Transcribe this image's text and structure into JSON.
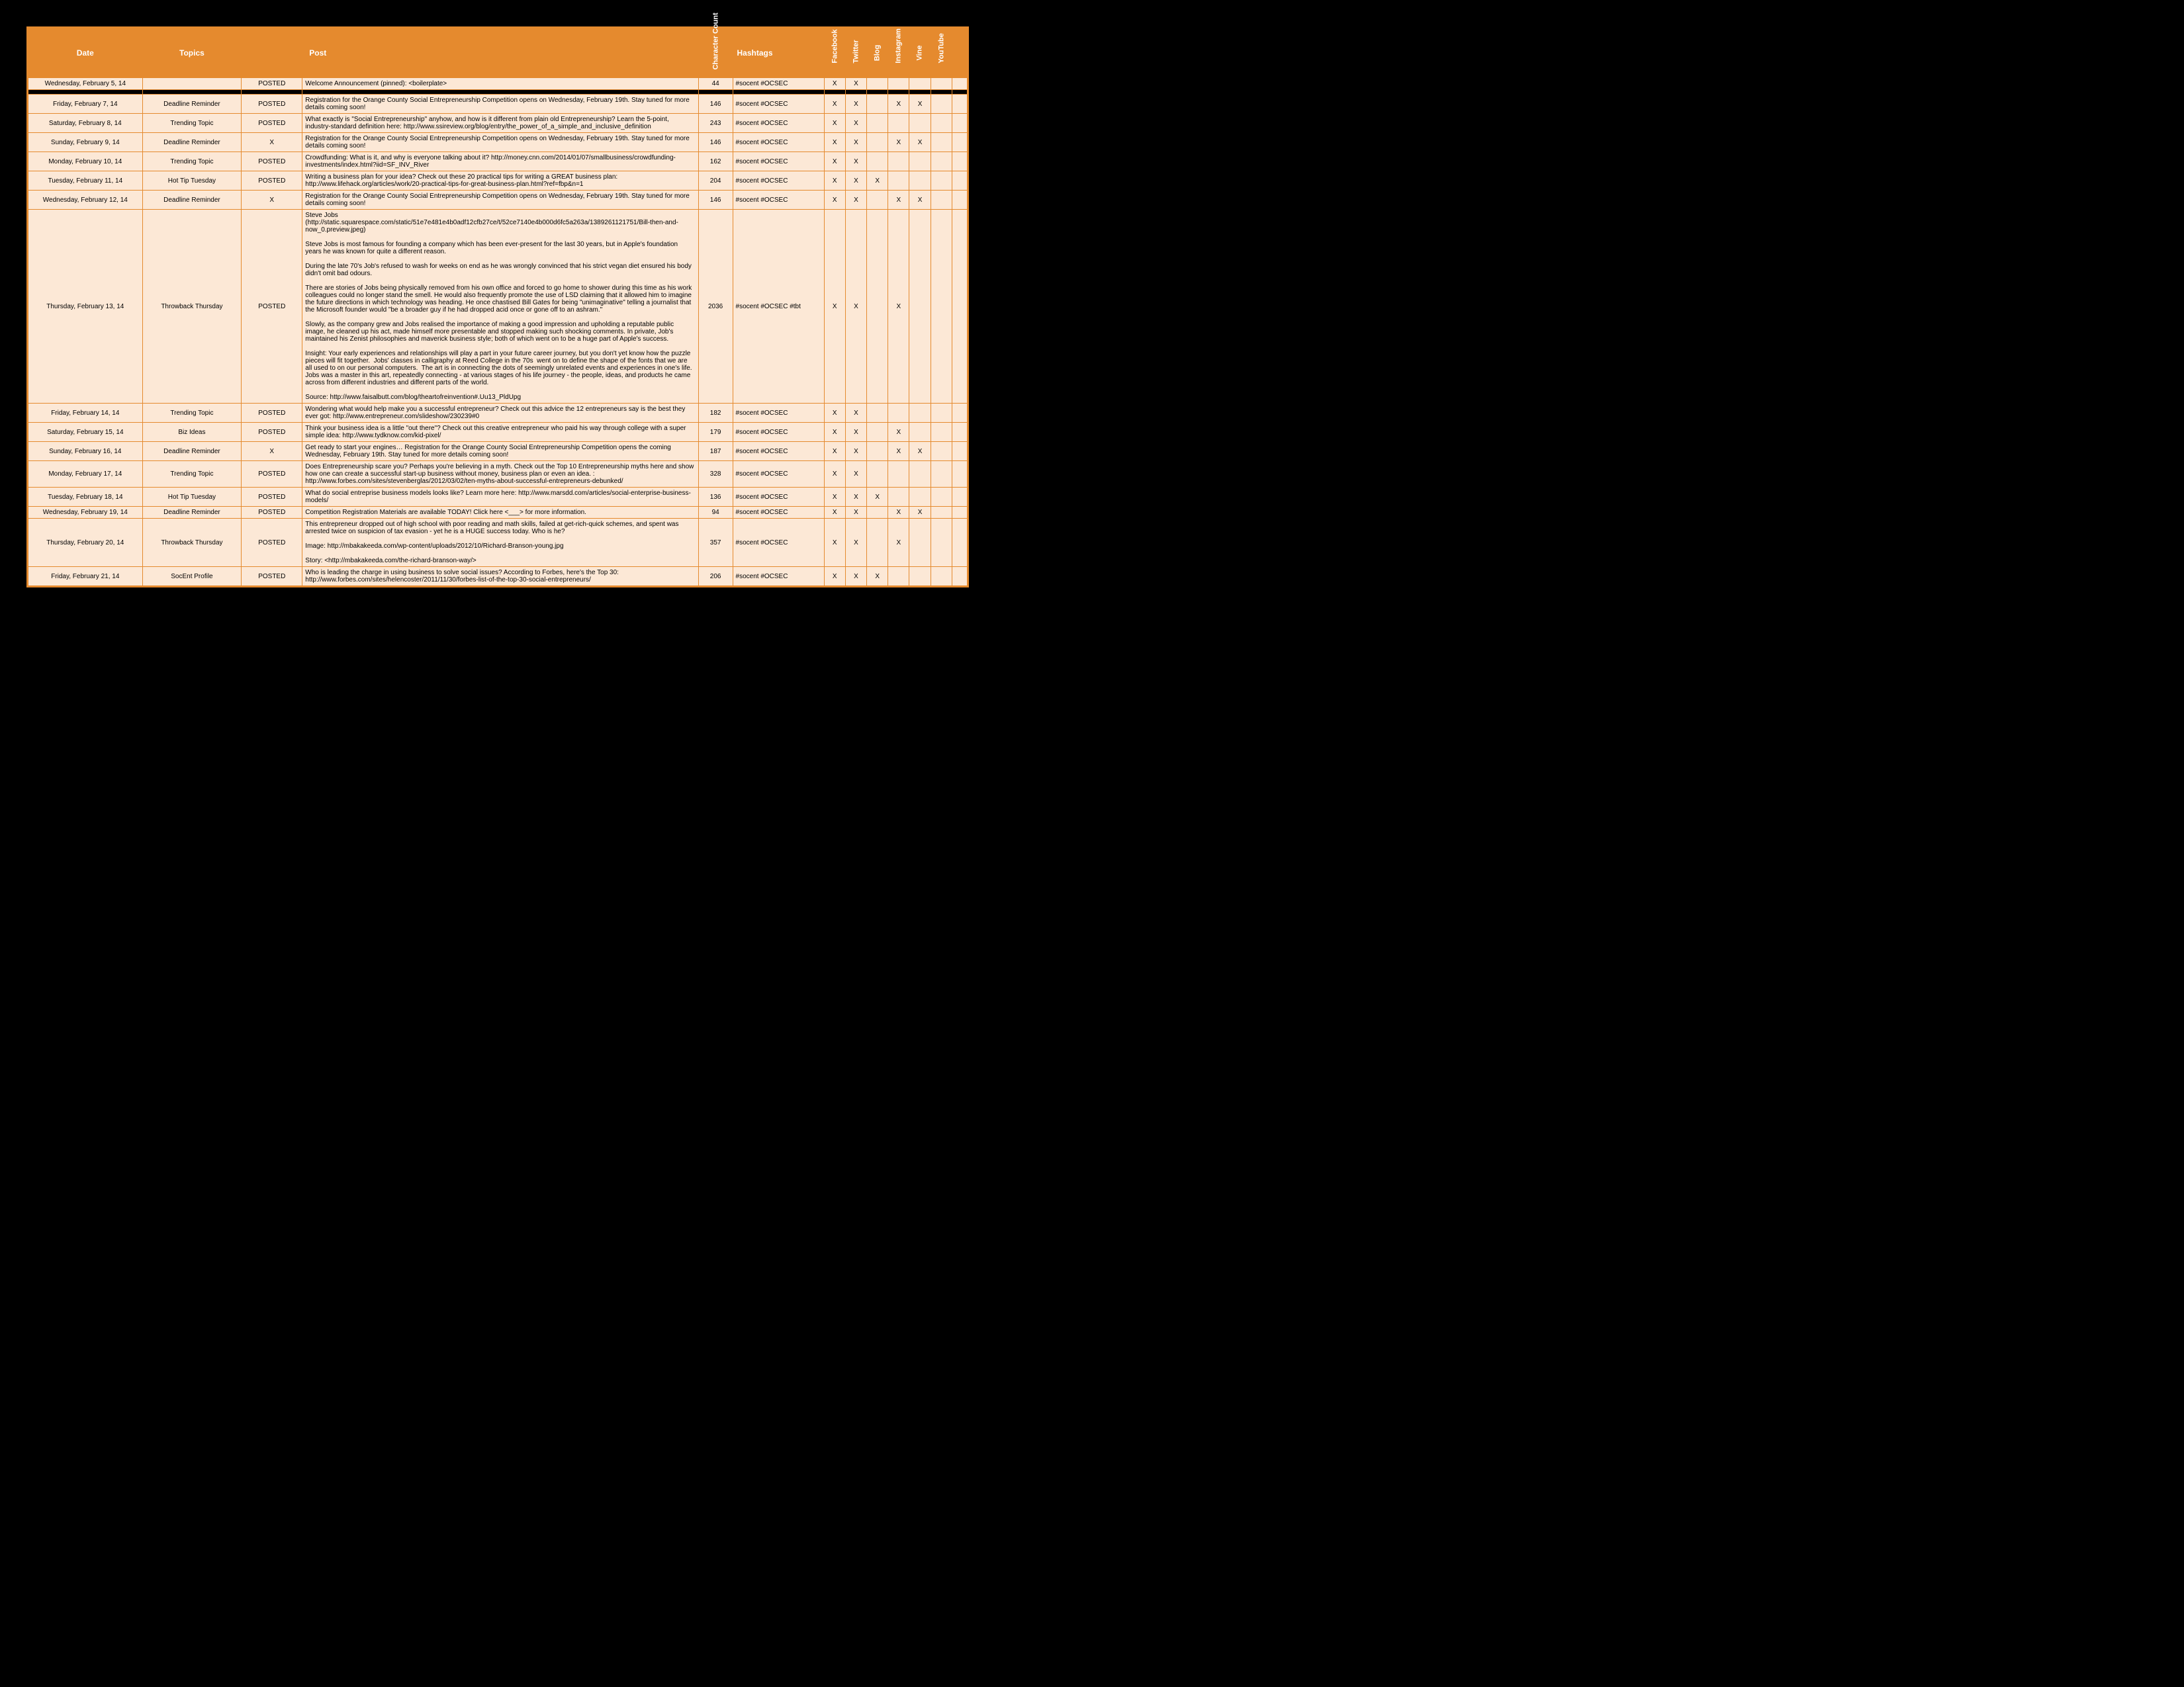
{
  "colors": {
    "header_bg": "#e58a2e",
    "header_text": "#ffffff",
    "row_bg": "#fce8d6",
    "border": "#e58a2e",
    "page_bg": "#000000"
  },
  "columns": {
    "date": "Date",
    "topics": "Topics",
    "status": "",
    "post": "Post",
    "char_count": "Character Count",
    "hashtags": "Hashtags",
    "channels": [
      "Facebook",
      "Twitter",
      "Blog",
      "Instagram",
      "Vine",
      "YouTube"
    ]
  },
  "rows": [
    {
      "date": "Wednesday, February 5, 14",
      "topic": "",
      "status": "POSTED",
      "post": "Welcome Announcement (pinned): <boilerplate>",
      "cc": "44",
      "hash": "#socent #OCSEC",
      "ch": [
        "X",
        "X",
        "",
        "",
        "",
        ""
      ]
    },
    {
      "divider": true
    },
    {
      "date": "Friday, February 7, 14",
      "topic": "Deadline Reminder",
      "status": "POSTED",
      "post": "Registration for the Orange County Social Entrepreneurship Competition opens on Wednesday, February 19th. Stay tuned for more details coming soon!",
      "cc": "146",
      "hash": "#socent #OCSEC",
      "ch": [
        "X",
        "X",
        "",
        "X",
        "X",
        ""
      ]
    },
    {
      "date": "Saturday, February 8, 14",
      "topic": "Trending Topic",
      "status": "POSTED",
      "post": "What exactly is \"Social Entrepreneurship\" anyhow, and how is it different from plain old Entrepreneurship? Learn the 5-point, industry-standard definition here: http://www.ssireview.org/blog/entry/the_power_of_a_simple_and_inclusive_definition",
      "cc": "243",
      "hash": "#socent #OCSEC",
      "ch": [
        "X",
        "X",
        "",
        "",
        "",
        ""
      ]
    },
    {
      "date": "Sunday, February 9, 14",
      "topic": "Deadline Reminder",
      "status": "X",
      "post": "Registration for the Orange County Social Entrepreneurship Competition opens on Wednesday, February 19th. Stay tuned for more details coming soon!",
      "cc": "146",
      "hash": "#socent #OCSEC",
      "ch": [
        "X",
        "X",
        "",
        "X",
        "X",
        ""
      ]
    },
    {
      "date": "Monday, February 10, 14",
      "topic": "Trending Topic",
      "status": "POSTED",
      "post": "Crowdfunding: What is it, and why is everyone talking about it? http://money.cnn.com/2014/01/07/smallbusiness/crowdfunding-investments/index.html?iid=SF_INV_River",
      "cc": "162",
      "hash": "#socent #OCSEC",
      "ch": [
        "X",
        "X",
        "",
        "",
        "",
        ""
      ]
    },
    {
      "date": "Tuesday, February 11, 14",
      "topic": "Hot Tip Tuesday",
      "status": "POSTED",
      "post": "Writing a business plan for your idea? Check out these 20 practical tips for writing a GREAT business plan: http://www.lifehack.org/articles/work/20-practical-tips-for-great-business-plan.html?ref=fbp&n=1",
      "cc": "204",
      "hash": "#socent #OCSEC",
      "ch": [
        "X",
        "X",
        "X",
        "",
        "",
        ""
      ]
    },
    {
      "date": "Wednesday, February 12, 14",
      "topic": "Deadline Reminder",
      "status": "X",
      "post": "Registration for the Orange County Social Entrepreneurship Competition opens on Wednesday, February 19th. Stay tuned for more details coming soon!",
      "cc": "146",
      "hash": "#socent #OCSEC",
      "ch": [
        "X",
        "X",
        "",
        "X",
        "X",
        ""
      ]
    },
    {
      "date": "Thursday, February 13, 14",
      "topic": "Throwback Thursday",
      "status": "POSTED",
      "post": "Steve Jobs\n(http://static.squarespace.com/static/51e7e481e4b0adf12cfb27ce/t/52ce7140e4b000d6fc5a263a/1389261121751/Bill-then-and-now_0.preview.jpeg)\n\nSteve Jobs is most famous for founding a company which has been ever-present for the last 30 years, but in Apple's foundation years he was known for quite a different reason.\n\nDuring the late 70's Job's refused to wash for weeks on end as he was wrongly convinced that his strict vegan diet ensured his body didn't omit bad odours.\n\nThere are stories of Jobs being physically removed from his own office and forced to go home to shower during this time as his work colleagues could no longer stand the smell. He would also frequently promote the use of LSD claiming that it allowed him to imagine the future directions in which technology was heading. He once chastised Bill Gates for being \"unimaginative\" telling a journalist that the Microsoft founder would \"be a broader guy if he had dropped acid once or gone off to an ashram.\"\n\nSlowly, as the company grew and Jobs realised the importance of making a good impression and upholding a reputable public image, he cleaned up his act, made himself more presentable and stopped making such shocking comments. In private, Job's maintained his Zenist philosophies and maverick business style; both of which went on to be a huge part of Apple's success.\n\nInsight: Your early experiences and relationships will play a part in your future career journey, but you don't yet know how the puzzle pieces will fit together.  Jobs' classes in calligraphy at Reed College in the 70s  went on to define the shape of the fonts that we are all used to on our personal computers.  The art is in connecting the dots of seemingly unrelated events and experiences in one's life.  Jobs was a master in this art, repeatedly connecting - at various stages of his life journey - the people, ideas, and products he came across from different industries and different parts of the world.\n\nSource: http://www.faisalbutt.com/blog/theartofreinvention#.Uu13_PldUpg",
      "cc": "2036",
      "hash": "#socent #OCSEC #tbt",
      "ch": [
        "X",
        "X",
        "",
        "X",
        "",
        ""
      ]
    },
    {
      "date": "Friday, February 14, 14",
      "topic": "Trending Topic",
      "status": "POSTED",
      "post": "Wondering what would help make you a successful entrepreneur? Check out this advice the 12 entrepreneurs say is the best they ever got: http://www.entrepreneur.com/slideshow/230239#0",
      "cc": "182",
      "hash": "#socent #OCSEC",
      "ch": [
        "X",
        "X",
        "",
        "",
        "",
        ""
      ]
    },
    {
      "date": "Saturday, February 15, 14",
      "topic": "Biz Ideas",
      "status": "POSTED",
      "post": "Think your business idea is a little \"out there\"? Check out this creative entrepreneur who paid his way through college with a super simple idea: http://www.tydknow.com/kid-pixel/",
      "cc": "179",
      "hash": "#socent #OCSEC",
      "ch": [
        "X",
        "X",
        "",
        "X",
        "",
        ""
      ]
    },
    {
      "date": "Sunday, February 16, 14",
      "topic": "Deadline Reminder",
      "status": "X",
      "post": "Get ready to start your engines… Registration for the Orange County Social Entrepreneurship Competition opens the coming Wednesday, February 19th. Stay tuned for more details coming soon!",
      "cc": "187",
      "hash": "#socent #OCSEC",
      "ch": [
        "X",
        "X",
        "",
        "X",
        "X",
        ""
      ]
    },
    {
      "date": "Monday, February 17, 14",
      "topic": "Trending Topic",
      "status": "POSTED",
      "post": "Does Entrepreneurship scare you? Perhaps you're believing in a myth. Check out the Top 10 Entrepreneurship myths here and show how one can create a successful start-up business without money, business plan or even an idea. : http://www.forbes.com/sites/stevenberglas/2012/03/02/ten-myths-about-successful-entrepreneurs-debunked/",
      "cc": "328",
      "hash": "#socent #OCSEC",
      "ch": [
        "X",
        "X",
        "",
        "",
        "",
        ""
      ]
    },
    {
      "date": "Tuesday, February 18, 14",
      "topic": "Hot Tip Tuesday",
      "status": "POSTED",
      "post": "What do social entreprise business models looks like? Learn more here: http://www.marsdd.com/articles/social-enterprise-business-models/",
      "cc": "136",
      "hash": "#socent #OCSEC",
      "ch": [
        "X",
        "X",
        "X",
        "",
        "",
        ""
      ]
    },
    {
      "date": "Wednesday, February 19, 14",
      "topic": "Deadline Reminder",
      "status": "POSTED",
      "post": "Competition Registration Materials are available TODAY! Click here <___> for more information.",
      "cc": "94",
      "hash": "#socent #OCSEC",
      "ch": [
        "X",
        "X",
        "",
        "X",
        "X",
        ""
      ]
    },
    {
      "date": "Thursday, February 20, 14",
      "topic": "Throwback Thursday",
      "status": "POSTED",
      "post": "This entrepreneur dropped out of high school with poor reading and math skills, failed at get-rich-quick schemes, and spent was arrested twice on suspicion of tax evasion - yet he is a HUGE success today. Who is he?\n\nImage: http://mbakakeeda.com/wp-content/uploads/2012/10/Richard-Branson-young.jpg\n\nStory: <http://mbakakeeda.com/the-richard-branson-way/>",
      "cc": "357",
      "hash": "#socent #OCSEC",
      "ch": [
        "X",
        "X",
        "",
        "X",
        "",
        ""
      ]
    },
    {
      "date": "Friday, February 21, 14",
      "topic": "SocEnt Profile",
      "status": "POSTED",
      "post": "Who is leading the charge in using business to solve social issues? According to Forbes, here's the Top 30: http://www.forbes.com/sites/helencoster/2011/11/30/forbes-list-of-the-top-30-social-entrepreneurs/",
      "cc": "206",
      "hash": "#socent #OCSEC",
      "ch": [
        "X",
        "X",
        "X",
        "",
        "",
        ""
      ]
    }
  ]
}
